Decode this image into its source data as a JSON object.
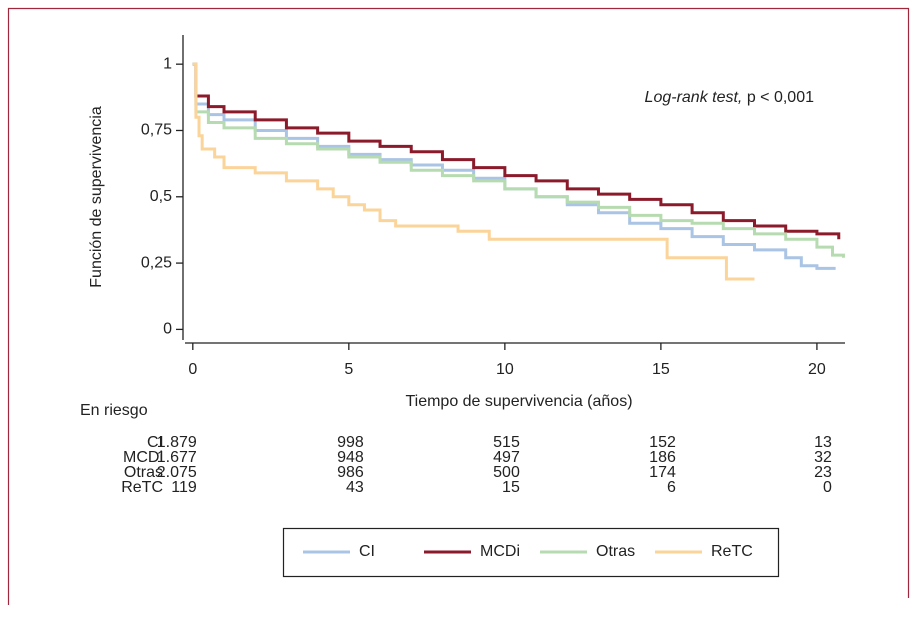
{
  "chart_data": {
    "type": "step",
    "ylabel": "Función de supervivencia",
    "xlabel": "Tiempo de supervivencia (años)",
    "annotation": {
      "italic": "Log-rank test,",
      "text": "p < 0,001"
    },
    "xlim": [
      -0.25,
      20.9
    ],
    "ylim": [
      -0.04,
      1.11
    ],
    "xticks": [
      0,
      5,
      10,
      15,
      20
    ],
    "yticks": [
      0,
      {
        "value": 0.25,
        "label": "0,25"
      },
      {
        "value": 0.5,
        "label": "0,5"
      },
      {
        "value": 0.75,
        "label": "0,75"
      },
      1
    ],
    "legend": "bottom",
    "series": [
      {
        "name": "CI",
        "color": "#a9c4e4",
        "x": [
          0,
          0.1,
          0.5,
          1,
          2,
          3,
          4,
          5,
          6,
          7,
          8,
          9,
          10,
          11,
          12,
          13,
          14,
          15,
          16,
          17,
          18,
          19,
          19.5,
          20,
          20.6
        ],
        "values": [
          1,
          0.85,
          0.81,
          0.79,
          0.75,
          0.72,
          0.69,
          0.66,
          0.64,
          0.62,
          0.6,
          0.57,
          0.53,
          0.5,
          0.47,
          0.44,
          0.4,
          0.38,
          0.35,
          0.32,
          0.3,
          0.27,
          0.24,
          0.23,
          0.23
        ]
      },
      {
        "name": "MCDi",
        "color": "#8b1a2b",
        "x": [
          0,
          0.1,
          0.5,
          1,
          2,
          3,
          4,
          5,
          6,
          7,
          8,
          9,
          10,
          11,
          12,
          13,
          14,
          15,
          16,
          17,
          18,
          19,
          20,
          20.7
        ],
        "values": [
          1,
          0.88,
          0.84,
          0.82,
          0.79,
          0.76,
          0.74,
          0.71,
          0.69,
          0.67,
          0.64,
          0.61,
          0.58,
          0.56,
          0.53,
          0.51,
          0.49,
          0.47,
          0.44,
          0.41,
          0.39,
          0.37,
          0.36,
          0.34
        ]
      },
      {
        "name": "Otras",
        "color": "#b7dbb0",
        "x": [
          0,
          0.1,
          0.5,
          1,
          2,
          3,
          4,
          5,
          6,
          7,
          8,
          9,
          10,
          11,
          12,
          13,
          14,
          15,
          16,
          17,
          18,
          19,
          20,
          20.5,
          20.85
        ],
        "values": [
          1,
          0.82,
          0.78,
          0.76,
          0.72,
          0.7,
          0.68,
          0.65,
          0.63,
          0.6,
          0.58,
          0.56,
          0.53,
          0.5,
          0.48,
          0.46,
          0.43,
          0.41,
          0.4,
          0.38,
          0.36,
          0.34,
          0.31,
          0.28,
          0.27
        ]
      },
      {
        "name": "ReTC",
        "color": "#fbd49a",
        "x": [
          0,
          0.1,
          0.2,
          0.3,
          0.7,
          1,
          2,
          3,
          4,
          4.5,
          5,
          5.5,
          6,
          6.5,
          8.5,
          9.5,
          15,
          15.2,
          17,
          17.1,
          18
        ],
        "values": [
          1,
          0.8,
          0.73,
          0.68,
          0.65,
          0.61,
          0.59,
          0.56,
          0.53,
          0.5,
          0.47,
          0.45,
          0.41,
          0.39,
          0.37,
          0.34,
          0.34,
          0.27,
          0.27,
          0.19,
          0.19
        ]
      }
    ],
    "at_risk": {
      "title": "En riesgo",
      "times": [
        0,
        5,
        10,
        15,
        20
      ],
      "rows": [
        {
          "name": "CI",
          "values": [
            1879,
            998,
            515,
            152,
            13
          ],
          "value_labels": [
            "1.879",
            "998",
            "515",
            "152",
            "13"
          ]
        },
        {
          "name": "MCDi",
          "values": [
            1677,
            948,
            497,
            186,
            32
          ],
          "value_labels": [
            "1.677",
            "948",
            "497",
            "186",
            "32"
          ]
        },
        {
          "name": "Otras",
          "values": [
            2075,
            986,
            500,
            174,
            23
          ],
          "value_labels": [
            "2.075",
            "986",
            "500",
            "174",
            "23"
          ]
        },
        {
          "name": "ReTC",
          "values": [
            119,
            43,
            15,
            6,
            0
          ],
          "value_labels": [
            "119",
            "43",
            "15",
            "6",
            "0"
          ]
        }
      ]
    }
  }
}
